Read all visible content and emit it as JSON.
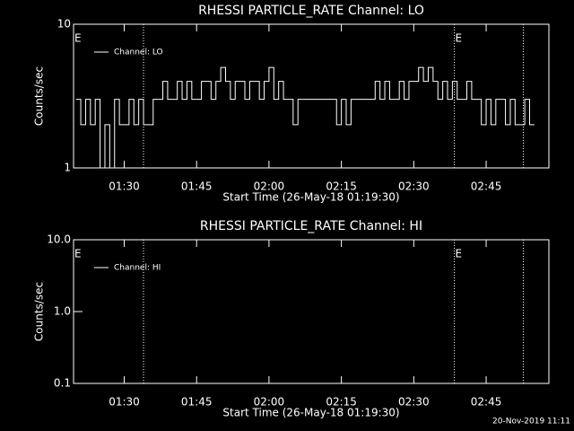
{
  "chart_data": [
    {
      "type": "line",
      "title": "RHESSI PARTICLE_RATE Channel: LO",
      "xlabel": "Start Time (26-May-18 01:19:30)",
      "ylabel": "Counts/sec",
      "log_y": true,
      "xlim": [
        79.5,
        178
      ],
      "xticks": [
        {
          "value": 90,
          "label": "01:30"
        },
        {
          "value": 105,
          "label": "01:45"
        },
        {
          "value": 120,
          "label": "02:00"
        },
        {
          "value": 135,
          "label": "02:15"
        },
        {
          "value": 150,
          "label": "02:30"
        },
        {
          "value": 165,
          "label": "02:45"
        }
      ],
      "ylim": [
        1,
        10
      ],
      "yticks": [
        1,
        10
      ],
      "vlines": [
        94,
        158.4,
        172.7
      ],
      "annotations": [
        {
          "text": "E",
          "x": 79.5
        },
        {
          "text": "E",
          "x": 158.4
        }
      ],
      "series": [
        {
          "name": "Channel: LO",
          "color": "#ffffff",
          "x": [
            80,
            81,
            82,
            83,
            84,
            85,
            86,
            87,
            88,
            89,
            90,
            91,
            92,
            93,
            94,
            95,
            96,
            97,
            98,
            99,
            100,
            101,
            102,
            103,
            104,
            105,
            106,
            107,
            108,
            109,
            110,
            111,
            112,
            113,
            114,
            115,
            116,
            117,
            118,
            119,
            120,
            121,
            122,
            123,
            124,
            125,
            126,
            127,
            128,
            129,
            130,
            131,
            132,
            133,
            134,
            135,
            136,
            137,
            138,
            139,
            140,
            141,
            142,
            143,
            144,
            145,
            146,
            147,
            148,
            149,
            150,
            151,
            152,
            153,
            154,
            155,
            156,
            157,
            158,
            159,
            160,
            161,
            162,
            163,
            164,
            165,
            166,
            167,
            168,
            169,
            170,
            171,
            172,
            173,
            174,
            175
          ],
          "values": [
            3,
            2,
            3,
            2,
            3,
            1,
            2,
            1,
            3,
            2,
            2,
            3,
            2,
            3,
            2,
            2,
            3,
            3,
            4,
            3,
            3,
            4,
            3,
            4,
            3,
            3,
            4,
            4,
            3,
            4,
            5,
            4,
            3,
            4,
            4,
            3,
            4,
            4,
            3,
            4,
            5,
            3,
            4,
            3,
            3,
            2,
            3,
            3,
            3,
            3,
            3,
            3,
            3,
            3,
            2,
            3,
            2,
            3,
            3,
            3,
            3,
            3,
            4,
            3,
            4,
            3,
            3,
            4,
            3,
            4,
            4,
            5,
            4,
            5,
            4,
            3,
            4,
            3,
            4,
            3,
            3,
            4,
            3,
            3,
            2,
            3,
            2,
            3,
            3,
            2,
            3,
            2,
            2,
            3,
            2,
            2
          ]
        }
      ]
    },
    {
      "type": "line",
      "title": "RHESSI PARTICLE_RATE Channel: HI",
      "xlabel": "Start Time (26-May-18 01:19:30)",
      "ylabel": "Counts/sec",
      "log_y": true,
      "xlim": [
        79.5,
        178
      ],
      "xticks": [
        {
          "value": 90,
          "label": "01:30"
        },
        {
          "value": 105,
          "label": "01:45"
        },
        {
          "value": 120,
          "label": "02:00"
        },
        {
          "value": 135,
          "label": "02:15"
        },
        {
          "value": 150,
          "label": "02:30"
        },
        {
          "value": 165,
          "label": "02:45"
        }
      ],
      "ylim": [
        0.1,
        10
      ],
      "yticks": [
        0.1,
        {
          "value": 1,
          "label": "1.0"
        },
        {
          "value": 10,
          "label": "10.0"
        }
      ],
      "vlines": [
        94,
        158.4,
        172.7
      ],
      "annotations": [
        {
          "text": "E",
          "x": 79.5
        },
        {
          "text": "E",
          "x": 158.4
        }
      ],
      "series": [
        {
          "name": "Channel: HI",
          "color": "#ffffff",
          "x": [],
          "values": []
        }
      ]
    }
  ],
  "footer": "20-Nov-2019 11:11"
}
